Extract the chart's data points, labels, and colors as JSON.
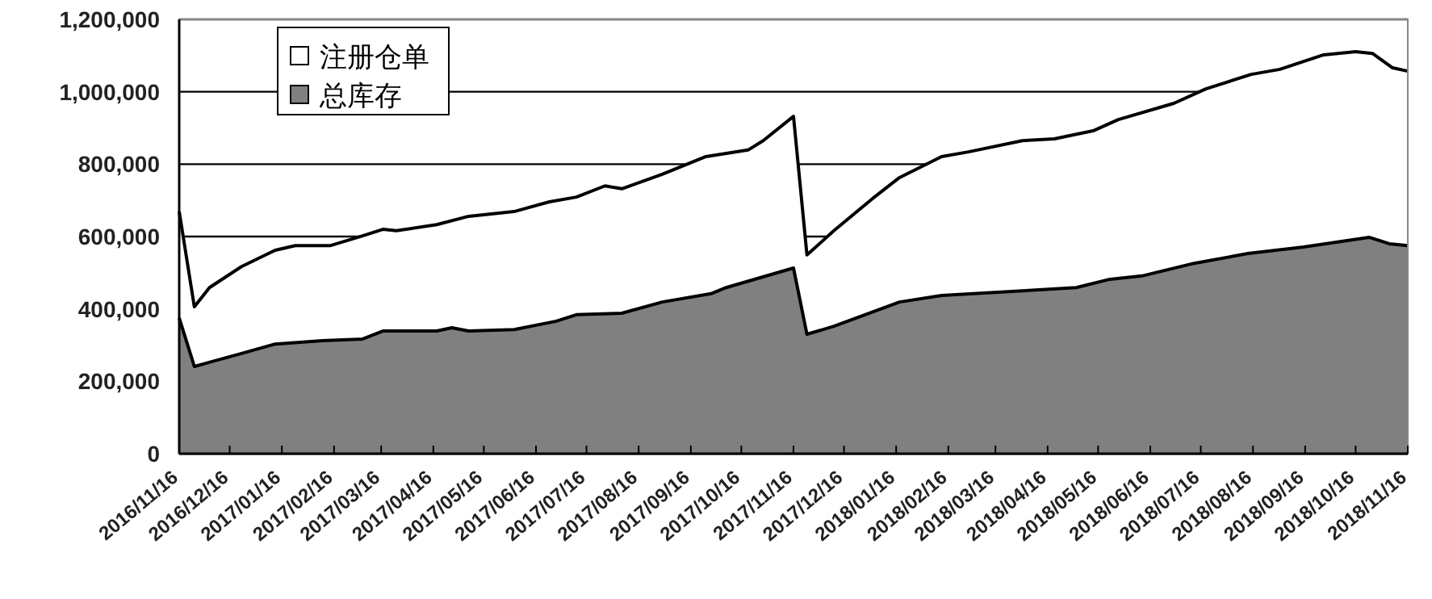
{
  "chart_data": {
    "type": "area",
    "legend": "top left",
    "grid": "y",
    "xlim": [
      "2016-11-16",
      "2018-11-16"
    ],
    "xticks": [
      {
        "value": "2016-11-16",
        "label": "2016/11/16"
      },
      {
        "value": "2016-12-16",
        "label": "2016/12/16"
      },
      {
        "value": "2017-01-16",
        "label": "2017/01/16"
      },
      {
        "value": "2017-02-16",
        "label": "2017/02/16"
      },
      {
        "value": "2017-03-16",
        "label": "2017/03/16"
      },
      {
        "value": "2017-04-16",
        "label": "2017/04/16"
      },
      {
        "value": "2017-05-16",
        "label": "2017/05/16"
      },
      {
        "value": "2017-06-16",
        "label": "2017/06/16"
      },
      {
        "value": "2017-07-16",
        "label": "2017/07/16"
      },
      {
        "value": "2017-08-16",
        "label": "2017/08/16"
      },
      {
        "value": "2017-09-16",
        "label": "2017/09/16"
      },
      {
        "value": "2017-10-16",
        "label": "2017/10/16"
      },
      {
        "value": "2017-11-16",
        "label": "2017/11/16"
      },
      {
        "value": "2017-12-16",
        "label": "2017/12/16"
      },
      {
        "value": "2018-01-16",
        "label": "2018/01/16"
      },
      {
        "value": "2018-02-16",
        "label": "2018/02/16"
      },
      {
        "value": "2018-03-16",
        "label": "2018/03/16"
      },
      {
        "value": "2018-04-16",
        "label": "2018/04/16"
      },
      {
        "value": "2018-05-16",
        "label": "2018/05/16"
      },
      {
        "value": "2018-06-16",
        "label": "2018/06/16"
      },
      {
        "value": "2018-07-16",
        "label": "2018/07/16"
      },
      {
        "value": "2018-08-16",
        "label": "2018/08/16"
      },
      {
        "value": "2018-09-16",
        "label": "2018/09/16"
      },
      {
        "value": "2018-10-16",
        "label": "2018/10/16"
      },
      {
        "value": "2018-11-16",
        "label": "2018/11/16"
      }
    ],
    "ylim": [
      0,
      1200000
    ],
    "yticks": [
      0,
      {
        "value": 200000,
        "label": "200,000"
      },
      {
        "value": 400000,
        "label": "400,000"
      },
      {
        "value": 600000,
        "label": "600,000"
      },
      {
        "value": 800000,
        "label": "800,000"
      },
      {
        "value": 1000000,
        "label": "1,000,000"
      },
      {
        "value": 1200000,
        "label": "1,200,000"
      }
    ],
    "series": [
      {
        "name": "注册仓单",
        "color": "#ffffff",
        "x": [
          "2016-11-16",
          "2016-11-25",
          "2016-12-04",
          "2016-12-23",
          "2017-01-12",
          "2017-01-24",
          "2017-02-14",
          "2017-03-05",
          "2017-03-17",
          "2017-03-25",
          "2017-04-18",
          "2017-05-07",
          "2017-06-03",
          "2017-06-24",
          "2017-07-10",
          "2017-07-27",
          "2017-08-06",
          "2017-08-30",
          "2017-09-25",
          "2017-10-20",
          "2017-10-29",
          "2017-11-16",
          "2017-11-24",
          "2017-12-10",
          "2018-01-02",
          "2018-01-18",
          "2018-02-12",
          "2018-02-28",
          "2018-04-01",
          "2018-04-20",
          "2018-05-13",
          "2018-05-28",
          "2018-06-30",
          "2018-07-19",
          "2018-08-15",
          "2018-09-01",
          "2018-09-27",
          "2018-10-16",
          "2018-10-26",
          "2018-11-07",
          "2018-11-16"
        ],
        "values": [
          669000,
          406000,
          459000,
          517000,
          562000,
          575000,
          575000,
          602000,
          620000,
          616000,
          633000,
          656000,
          669000,
          696000,
          709000,
          740000,
          732000,
          772000,
          821000,
          839000,
          865000,
          932000,
          549000,
          616000,
          705000,
          763000,
          821000,
          834000,
          865000,
          870000,
          892000,
          923000,
          968000,
          1008000,
          1048000,
          1062000,
          1102000,
          1111000,
          1106000,
          1066000,
          1057000
        ]
      },
      {
        "name": "总库存",
        "color": "#808080",
        "x": [
          "2016-11-16",
          "2016-11-25",
          "2016-12-23",
          "2017-01-12",
          "2017-02-09",
          "2017-03-05",
          "2017-03-17",
          "2017-04-18",
          "2017-04-27",
          "2017-05-07",
          "2017-06-03",
          "2017-06-28",
          "2017-07-10",
          "2017-08-06",
          "2017-08-30",
          "2017-09-28",
          "2017-10-07",
          "2017-11-16",
          "2017-11-24",
          "2017-12-10",
          "2018-01-18",
          "2018-02-12",
          "2018-04-01",
          "2018-05-03",
          "2018-05-23",
          "2018-06-11",
          "2018-07-12",
          "2018-08-13",
          "2018-09-15",
          "2018-10-24",
          "2018-11-05",
          "2018-11-16"
        ],
        "values": [
          375000,
          241000,
          277000,
          303000,
          312000,
          317000,
          339000,
          339000,
          348000,
          339000,
          343000,
          366000,
          384000,
          388000,
          419000,
          442000,
          459000,
          513000,
          330000,
          352000,
          419000,
          437000,
          450000,
          459000,
          482000,
          491000,
          526000,
          553000,
          571000,
          598000,
          580000,
          575000
        ]
      }
    ]
  }
}
